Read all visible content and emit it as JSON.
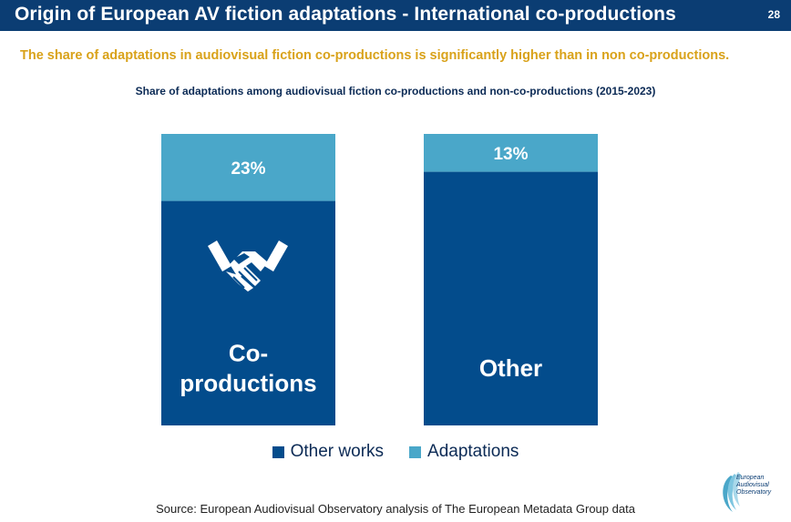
{
  "header": {
    "title": "Origin of European AV fiction adaptations - International co-productions",
    "page_number": "28"
  },
  "subtitle": "The share of adaptations in audiovisual fiction co-productions is significantly higher than in non co-productions.",
  "colors": {
    "header_bg": "#0b3d73",
    "other_works": "#034c8c",
    "adaptations": "#4aa7c9",
    "subtitle": "#d9a21a"
  },
  "chart_data": {
    "type": "bar",
    "stacked": true,
    "normalized_percent": true,
    "title": "Share of adaptations among audiovisual fiction co-productions and non-co-productions (2015-2023)",
    "categories": [
      "Co-productions",
      "Other"
    ],
    "category_labels": [
      [
        "Co-",
        "productions"
      ],
      [
        "Other"
      ]
    ],
    "series": [
      {
        "name": "Other works",
        "values": [
          77,
          87
        ]
      },
      {
        "name": "Adaptations",
        "values": [
          23,
          13
        ]
      }
    ],
    "data_labels": [
      "23%",
      "13%"
    ],
    "ylim": [
      0,
      100
    ],
    "legend_position": "bottom",
    "grid": false,
    "icon": "handshake-icon"
  },
  "legend": {
    "items": [
      {
        "label": "Other works",
        "color": "#034c8c"
      },
      {
        "label": "Adaptations",
        "color": "#4aa7c9"
      }
    ]
  },
  "source": "Source: European Audiovisual Observatory analysis of The European Metadata Group data",
  "logo": {
    "icon": "observatory-logo-icon",
    "lines": [
      "European",
      "Audiovisual",
      "Observatory"
    ]
  }
}
